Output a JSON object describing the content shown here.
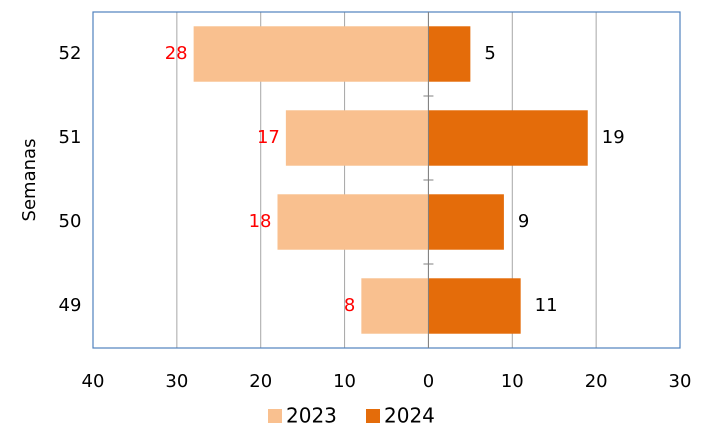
{
  "chart_data": {
    "type": "bar",
    "orientation": "horizontal",
    "y_label": "Semanas",
    "categories": [
      "52",
      "51",
      "50",
      "49"
    ],
    "series": [
      {
        "name": "2023",
        "color": "#f9c08f",
        "label_color": "#ff0000",
        "values": [
          -28,
          -17,
          -18,
          -8
        ],
        "value_labels": [
          "28",
          "17",
          "18",
          "8"
        ]
      },
      {
        "name": "2024",
        "color": "#e46c0a",
        "label_color": "#000000",
        "values": [
          5,
          19,
          9,
          11
        ]
      }
    ],
    "xlim": [
      -40,
      30
    ],
    "xticks": [
      {
        "value": -40,
        "label": "40"
      },
      {
        "value": -30,
        "label": "30"
      },
      {
        "value": -20,
        "label": "20"
      },
      {
        "value": -10,
        "label": "10"
      },
      0,
      10,
      20,
      30
    ],
    "grid": true,
    "legend": "bottom"
  }
}
